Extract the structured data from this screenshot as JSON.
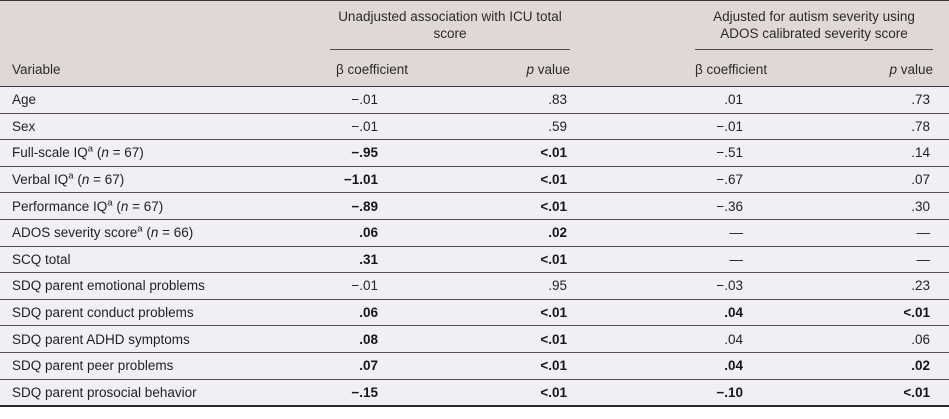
{
  "table": {
    "colors": {
      "header_bg": "#e0d8d6",
      "body_bg": "#f2eff4",
      "rule_dark": "#3a3640",
      "row_separator": "#534e58",
      "group_underline": "#4d4d4d"
    },
    "header": {
      "variable_label": "Variable",
      "groups": [
        {
          "title": "Unadjusted association with ICU total score"
        },
        {
          "title": "Adjusted for autism severity using ADOS calibrated severity score"
        }
      ],
      "beta_label": "β coefficient",
      "p_label": {
        "italic": "p",
        "rest": " value"
      }
    },
    "rows": [
      {
        "variable_parts": [
          {
            "t": "Age"
          }
        ],
        "cells": [
          {
            "v": "−.01",
            "bold": false
          },
          {
            "v": ".83",
            "bold": false
          },
          {
            "v": ".01",
            "bold": false
          },
          {
            "v": ".73",
            "bold": false
          }
        ]
      },
      {
        "variable_parts": [
          {
            "t": "Sex"
          }
        ],
        "cells": [
          {
            "v": "−.01",
            "bold": false
          },
          {
            "v": ".59",
            "bold": false
          },
          {
            "v": "−.01",
            "bold": false
          },
          {
            "v": ".78",
            "bold": false
          }
        ]
      },
      {
        "variable_parts": [
          {
            "t": "Full-scale IQ"
          },
          {
            "t": "a",
            "sup": true
          },
          {
            "t": " ("
          },
          {
            "t": "n",
            "italic": true
          },
          {
            "t": " = 67)"
          }
        ],
        "cells": [
          {
            "v": "−.95",
            "bold": true
          },
          {
            "v": "<.01",
            "bold": true
          },
          {
            "v": "−.51",
            "bold": false
          },
          {
            "v": ".14",
            "bold": false
          }
        ]
      },
      {
        "variable_parts": [
          {
            "t": "Verbal IQ"
          },
          {
            "t": "a",
            "sup": true
          },
          {
            "t": " ("
          },
          {
            "t": "n",
            "italic": true
          },
          {
            "t": " = 67)"
          }
        ],
        "cells": [
          {
            "v": "−1.01",
            "bold": true
          },
          {
            "v": "<.01",
            "bold": true
          },
          {
            "v": "−.67",
            "bold": false
          },
          {
            "v": ".07",
            "bold": false
          }
        ]
      },
      {
        "variable_parts": [
          {
            "t": "Performance IQ"
          },
          {
            "t": "a",
            "sup": true
          },
          {
            "t": " ("
          },
          {
            "t": "n",
            "italic": true
          },
          {
            "t": " = 67)"
          }
        ],
        "cells": [
          {
            "v": "−.89",
            "bold": true
          },
          {
            "v": "<.01",
            "bold": true
          },
          {
            "v": "−.36",
            "bold": false
          },
          {
            "v": ".30",
            "bold": false
          }
        ]
      },
      {
        "variable_parts": [
          {
            "t": "ADOS severity score"
          },
          {
            "t": "a",
            "sup": true
          },
          {
            "t": " ("
          },
          {
            "t": "n",
            "italic": true
          },
          {
            "t": " = 66)"
          }
        ],
        "cells": [
          {
            "v": ".06",
            "bold": true
          },
          {
            "v": ".02",
            "bold": true
          },
          {
            "v": "—",
            "bold": false
          },
          {
            "v": "—",
            "bold": false
          }
        ]
      },
      {
        "variable_parts": [
          {
            "t": "SCQ total"
          }
        ],
        "cells": [
          {
            "v": ".31",
            "bold": true
          },
          {
            "v": "<.01",
            "bold": true
          },
          {
            "v": "—",
            "bold": false
          },
          {
            "v": "—",
            "bold": false
          }
        ]
      },
      {
        "variable_parts": [
          {
            "t": "SDQ parent emotional problems"
          }
        ],
        "cells": [
          {
            "v": "−.01",
            "bold": false
          },
          {
            "v": ".95",
            "bold": false
          },
          {
            "v": "−.03",
            "bold": false
          },
          {
            "v": ".23",
            "bold": false
          }
        ]
      },
      {
        "variable_parts": [
          {
            "t": "SDQ parent conduct problems"
          }
        ],
        "cells": [
          {
            "v": ".06",
            "bold": true
          },
          {
            "v": "<.01",
            "bold": true
          },
          {
            "v": ".04",
            "bold": true
          },
          {
            "v": "<.01",
            "bold": true
          }
        ]
      },
      {
        "variable_parts": [
          {
            "t": "SDQ parent ADHD symptoms"
          }
        ],
        "cells": [
          {
            "v": ".08",
            "bold": true
          },
          {
            "v": "<.01",
            "bold": true
          },
          {
            "v": ".04",
            "bold": false
          },
          {
            "v": ".06",
            "bold": false
          }
        ]
      },
      {
        "variable_parts": [
          {
            "t": "SDQ parent peer problems"
          }
        ],
        "cells": [
          {
            "v": ".07",
            "bold": true
          },
          {
            "v": "<.01",
            "bold": true
          },
          {
            "v": ".04",
            "bold": true
          },
          {
            "v": ".02",
            "bold": true
          }
        ]
      },
      {
        "variable_parts": [
          {
            "t": "SDQ parent prosocial behavior"
          }
        ],
        "cells": [
          {
            "v": "−.15",
            "bold": true
          },
          {
            "v": "<.01",
            "bold": true
          },
          {
            "v": "−.10",
            "bold": true
          },
          {
            "v": "<.01",
            "bold": true
          }
        ]
      }
    ]
  }
}
